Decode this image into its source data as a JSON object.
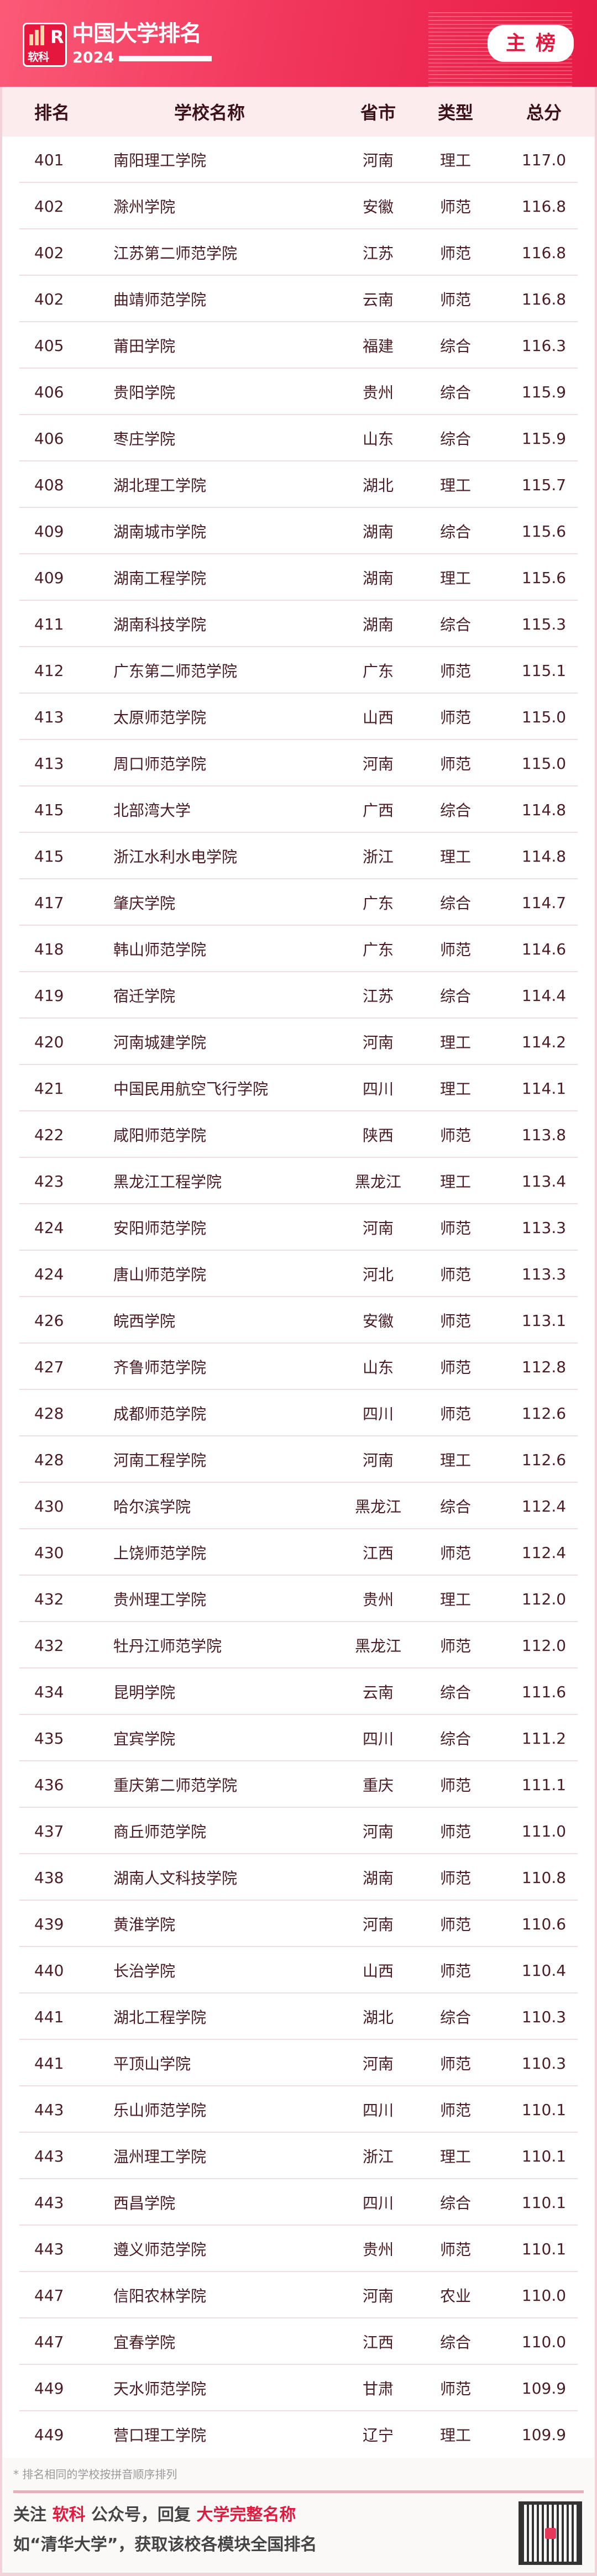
{
  "header": {
    "logo_text": "软科",
    "title": "中国大学排名",
    "year": "2024",
    "badge": "主榜"
  },
  "columns": [
    "排名",
    "学校名称",
    "省市",
    "类型",
    "总分"
  ],
  "rows": [
    [
      "401",
      "南阳理工学院",
      "河南",
      "理工",
      "117.0"
    ],
    [
      "402",
      "滁州学院",
      "安徽",
      "师范",
      "116.8"
    ],
    [
      "402",
      "江苏第二师范学院",
      "江苏",
      "师范",
      "116.8"
    ],
    [
      "402",
      "曲靖师范学院",
      "云南",
      "师范",
      "116.8"
    ],
    [
      "405",
      "莆田学院",
      "福建",
      "综合",
      "116.3"
    ],
    [
      "406",
      "贵阳学院",
      "贵州",
      "综合",
      "115.9"
    ],
    [
      "406",
      "枣庄学院",
      "山东",
      "综合",
      "115.9"
    ],
    [
      "408",
      "湖北理工学院",
      "湖北",
      "理工",
      "115.7"
    ],
    [
      "409",
      "湖南城市学院",
      "湖南",
      "综合",
      "115.6"
    ],
    [
      "409",
      "湖南工程学院",
      "湖南",
      "理工",
      "115.6"
    ],
    [
      "411",
      "湖南科技学院",
      "湖南",
      "综合",
      "115.3"
    ],
    [
      "412",
      "广东第二师范学院",
      "广东",
      "师范",
      "115.1"
    ],
    [
      "413",
      "太原师范学院",
      "山西",
      "师范",
      "115.0"
    ],
    [
      "413",
      "周口师范学院",
      "河南",
      "师范",
      "115.0"
    ],
    [
      "415",
      "北部湾大学",
      "广西",
      "综合",
      "114.8"
    ],
    [
      "415",
      "浙江水利水电学院",
      "浙江",
      "理工",
      "114.8"
    ],
    [
      "417",
      "肇庆学院",
      "广东",
      "综合",
      "114.7"
    ],
    [
      "418",
      "韩山师范学院",
      "广东",
      "师范",
      "114.6"
    ],
    [
      "419",
      "宿迁学院",
      "江苏",
      "综合",
      "114.4"
    ],
    [
      "420",
      "河南城建学院",
      "河南",
      "理工",
      "114.2"
    ],
    [
      "421",
      "中国民用航空飞行学院",
      "四川",
      "理工",
      "114.1"
    ],
    [
      "422",
      "咸阳师范学院",
      "陕西",
      "师范",
      "113.8"
    ],
    [
      "423",
      "黑龙江工程学院",
      "黑龙江",
      "理工",
      "113.4"
    ],
    [
      "424",
      "安阳师范学院",
      "河南",
      "师范",
      "113.3"
    ],
    [
      "424",
      "唐山师范学院",
      "河北",
      "师范",
      "113.3"
    ],
    [
      "426",
      "皖西学院",
      "安徽",
      "师范",
      "113.1"
    ],
    [
      "427",
      "齐鲁师范学院",
      "山东",
      "师范",
      "112.8"
    ],
    [
      "428",
      "成都师范学院",
      "四川",
      "师范",
      "112.6"
    ],
    [
      "428",
      "河南工程学院",
      "河南",
      "理工",
      "112.6"
    ],
    [
      "430",
      "哈尔滨学院",
      "黑龙江",
      "综合",
      "112.4"
    ],
    [
      "430",
      "上饶师范学院",
      "江西",
      "师范",
      "112.4"
    ],
    [
      "432",
      "贵州理工学院",
      "贵州",
      "理工",
      "112.0"
    ],
    [
      "432",
      "牡丹江师范学院",
      "黑龙江",
      "师范",
      "112.0"
    ],
    [
      "434",
      "昆明学院",
      "云南",
      "综合",
      "111.6"
    ],
    [
      "435",
      "宜宾学院",
      "四川",
      "综合",
      "111.2"
    ],
    [
      "436",
      "重庆第二师范学院",
      "重庆",
      "师范",
      "111.1"
    ],
    [
      "437",
      "商丘师范学院",
      "河南",
      "师范",
      "111.0"
    ],
    [
      "438",
      "湖南人文科技学院",
      "湖南",
      "师范",
      "110.8"
    ],
    [
      "439",
      "黄淮学院",
      "河南",
      "师范",
      "110.6"
    ],
    [
      "440",
      "长治学院",
      "山西",
      "师范",
      "110.4"
    ],
    [
      "441",
      "湖北工程学院",
      "湖北",
      "综合",
      "110.3"
    ],
    [
      "441",
      "平顶山学院",
      "河南",
      "师范",
      "110.3"
    ],
    [
      "443",
      "乐山师范学院",
      "四川",
      "师范",
      "110.1"
    ],
    [
      "443",
      "温州理工学院",
      "浙江",
      "理工",
      "110.1"
    ],
    [
      "443",
      "西昌学院",
      "四川",
      "综合",
      "110.1"
    ],
    [
      "443",
      "遵义师范学院",
      "贵州",
      "师范",
      "110.1"
    ],
    [
      "447",
      "信阳农林学院",
      "河南",
      "农业",
      "110.0"
    ],
    [
      "447",
      "宜春学院",
      "江西",
      "综合",
      "110.0"
    ],
    [
      "449",
      "天水师范学院",
      "甘肃",
      "师范",
      "109.9"
    ],
    [
      "449",
      "营口理工学院",
      "辽宁",
      "理工",
      "109.9"
    ]
  ],
  "footer": {
    "note": "* 排名相同的学校按拼音顺序排列",
    "line1_a": "关注 ",
    "line1_b": "软科",
    "line1_c": " 公众号，回复 ",
    "line1_d": "大学完整名称",
    "line2": "如“清华大学”，获取该校各模块全国排名",
    "qr": "qr-code"
  },
  "colors": {
    "brand": "#e5173f",
    "text": "#4a1c24",
    "header_bg": "#fdecee"
  }
}
